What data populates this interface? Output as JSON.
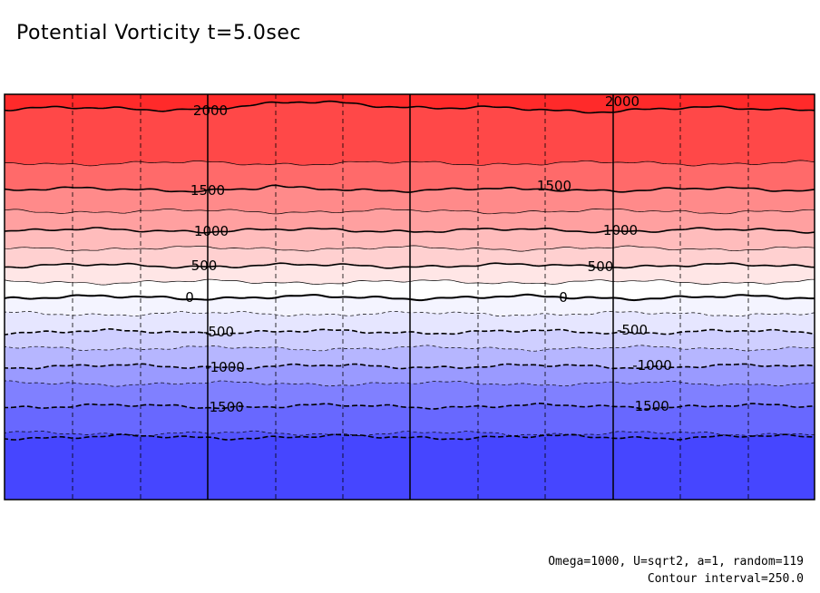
{
  "chart_data": {
    "type": "heatmap",
    "subtype": "filled-contour",
    "title": "Potential Vorticity t=5.0sec",
    "annotations": [
      "Omega=1000, U=sqrt2, a=1, random=119",
      "Contour interval=250.0"
    ],
    "contour_interval": 250.0,
    "value_range": [
      -2250,
      2250
    ],
    "contour_levels": [
      -2000,
      -1750,
      -1500,
      -1250,
      -1000,
      -750,
      -500,
      -250,
      0,
      250,
      500,
      750,
      1000,
      1250,
      1500,
      1750,
      2000
    ],
    "bands": [
      {
        "min": 2000,
        "max": 2250,
        "color": "#ff2a2a"
      },
      {
        "min": 1750,
        "max": 2000,
        "color": "#ff4848"
      },
      {
        "min": 1500,
        "max": 1750,
        "color": "#ff6a6a"
      },
      {
        "min": 1250,
        "max": 1500,
        "color": "#ff8a8a"
      },
      {
        "min": 1000,
        "max": 1250,
        "color": "#ffa0a0"
      },
      {
        "min": 750,
        "max": 1000,
        "color": "#ffbcbc"
      },
      {
        "min": 500,
        "max": 750,
        "color": "#ffd0d0"
      },
      {
        "min": 250,
        "max": 500,
        "color": "#ffe6e6"
      },
      {
        "min": 0,
        "max": 250,
        "color": "#ffffff"
      },
      {
        "min": -250,
        "max": 0,
        "color": "#f4f4ff"
      },
      {
        "min": -500,
        "max": -250,
        "color": "#e6e6ff"
      },
      {
        "min": -750,
        "max": -500,
        "color": "#cfcfff"
      },
      {
        "min": -1000,
        "max": -750,
        "color": "#b6b6ff"
      },
      {
        "min": -1250,
        "max": -1000,
        "color": "#9a9aff"
      },
      {
        "min": -1500,
        "max": -1250,
        "color": "#8080ff"
      },
      {
        "min": -1750,
        "max": -1500,
        "color": "#6868ff"
      },
      {
        "min": -2000,
        "max": -1750,
        "color": "#5454ff"
      },
      {
        "min": -2250,
        "max": -2000,
        "color": "#4646ff"
      }
    ],
    "labels": [
      {
        "text": "2000",
        "value": 2000
      },
      {
        "text": "2000",
        "value": 2000
      },
      {
        "text": "1500",
        "value": 1500
      },
      {
        "text": "1500",
        "value": 1500
      },
      {
        "text": "1000",
        "value": 1000
      },
      {
        "text": "1000",
        "value": 1000
      },
      {
        "text": "500",
        "value": 500
      },
      {
        "text": "500",
        "value": 500
      },
      {
        "text": "0",
        "value": 0
      },
      {
        "text": "0",
        "value": 0
      },
      {
        "text": "-500",
        "value": -500
      },
      {
        "text": "-500",
        "value": -500
      },
      {
        "text": "-1000",
        "value": -1000
      },
      {
        "text": "-1000",
        "value": -1000
      },
      {
        "text": "-1500",
        "value": -1500
      },
      {
        "text": "-1500",
        "value": -1500
      }
    ],
    "grid": true,
    "xlabel": "",
    "ylabel": ""
  }
}
